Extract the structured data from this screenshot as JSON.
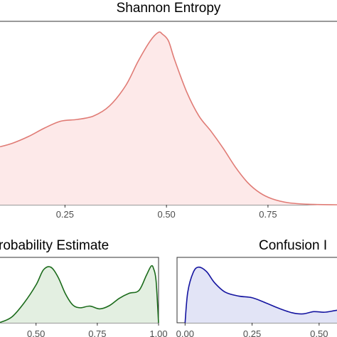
{
  "chart_data": [
    {
      "type": "area",
      "title": "Shannon Entropy",
      "xlabel": "",
      "ylabel": "",
      "xlim": [
        0.09,
        0.92
      ],
      "ylim": [
        0,
        1.05
      ],
      "x_ticks": [
        0.25,
        0.5,
        0.75
      ],
      "x_tick_labels": [
        "0.25",
        "0.50",
        "0.75"
      ],
      "grid": false,
      "colors": {
        "line": "#e07b75",
        "fill": "#fde9e9"
      },
      "x": [
        0.09,
        0.12,
        0.16,
        0.2,
        0.24,
        0.28,
        0.32,
        0.36,
        0.4,
        0.43,
        0.46,
        0.48,
        0.49,
        0.505,
        0.52,
        0.55,
        0.58,
        0.61,
        0.64,
        0.67,
        0.7,
        0.73,
        0.76,
        0.8,
        0.85,
        0.92
      ],
      "y": [
        0.34,
        0.36,
        0.4,
        0.45,
        0.49,
        0.5,
        0.52,
        0.58,
        0.7,
        0.84,
        0.96,
        1.01,
        1.0,
        0.96,
        0.85,
        0.66,
        0.52,
        0.43,
        0.33,
        0.22,
        0.13,
        0.07,
        0.035,
        0.012,
        0.003,
        0.0
      ]
    },
    {
      "type": "area",
      "title": "robability Estimate",
      "xlabel": "",
      "ylabel": "",
      "xlim": [
        0.35,
        1.0
      ],
      "ylim": [
        0,
        1.15
      ],
      "x_ticks": [
        0.5,
        0.75,
        1.0
      ],
      "x_tick_labels": [
        "0.50",
        "0.75",
        "1.00"
      ],
      "grid": false,
      "colors": {
        "line": "#1b6b1b",
        "fill": "#e3efe1"
      },
      "x": [
        0.35,
        0.4,
        0.45,
        0.5,
        0.53,
        0.56,
        0.59,
        0.62,
        0.65,
        0.68,
        0.72,
        0.76,
        0.8,
        0.84,
        0.88,
        0.92,
        0.95,
        0.97,
        0.98,
        0.99,
        1.0
      ],
      "y": [
        0.0,
        0.1,
        0.35,
        0.68,
        0.95,
        1.0,
        0.82,
        0.52,
        0.32,
        0.27,
        0.3,
        0.25,
        0.31,
        0.44,
        0.53,
        0.58,
        0.85,
        1.02,
        0.97,
        0.75,
        0.0
      ]
    },
    {
      "type": "area",
      "title": "Confusion I",
      "xlabel": "",
      "ylabel": "",
      "xlim": [
        -0.03,
        0.58
      ],
      "ylim": [
        0,
        1.15
      ],
      "x_ticks": [
        0.0,
        0.25,
        0.5
      ],
      "x_tick_labels": [
        "0.00",
        "0.25",
        "0.50"
      ],
      "grid": false,
      "colors": {
        "line": "#1414a0",
        "fill": "#e2e4f6"
      },
      "x": [
        0.0,
        0.01,
        0.03,
        0.05,
        0.08,
        0.11,
        0.15,
        0.2,
        0.25,
        0.3,
        0.35,
        0.4,
        0.44,
        0.48,
        0.52,
        0.56,
        0.58
      ],
      "y": [
        0.0,
        0.55,
        0.9,
        1.0,
        0.92,
        0.72,
        0.55,
        0.48,
        0.45,
        0.36,
        0.26,
        0.18,
        0.16,
        0.2,
        0.19,
        0.22,
        0.23
      ]
    }
  ]
}
